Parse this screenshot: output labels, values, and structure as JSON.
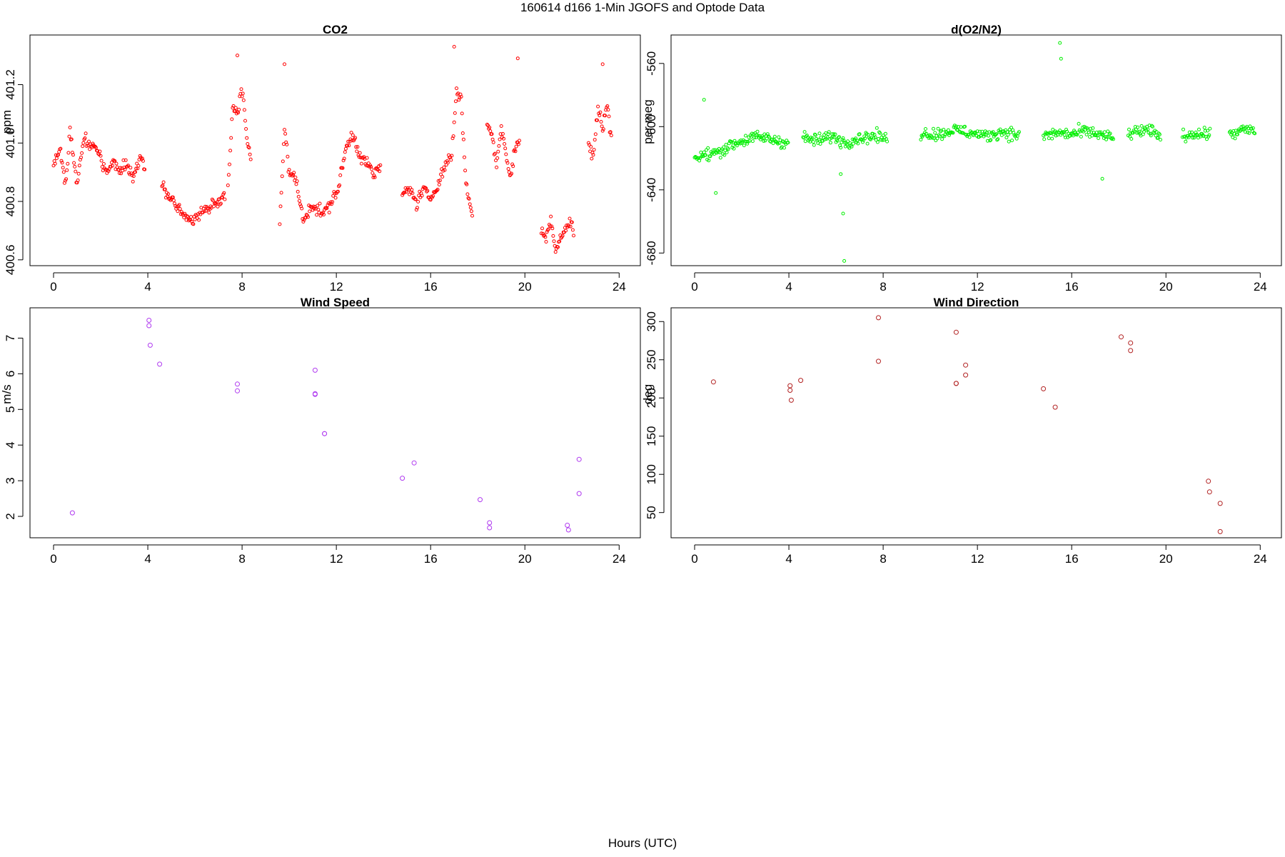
{
  "page": {
    "title": "160614   d166   1-Min  JGOFS and Optode Data",
    "xlabel": "Hours (UTC)"
  },
  "chart_data": [
    {
      "type": "scatter",
      "title": "CO2",
      "ylabel": "ppm",
      "xlabel": "",
      "xlim": [
        -1.0,
        24.9
      ],
      "ylim": [
        400.58,
        401.37
      ],
      "xticks": [
        0,
        4,
        8,
        12,
        16,
        20,
        24
      ],
      "yticks": [
        400.6,
        400.8,
        401.0,
        401.2
      ],
      "ytick_labels": [
        "400.6",
        "400.8",
        "401.0",
        "401.2"
      ],
      "color": "#ff0000",
      "grid": false,
      "series": [
        {
          "density": "one reading per minute",
          "segments": [
            {
              "x": [
                0.0,
                0.3,
                0.5,
                0.7,
                1.0,
                1.3,
                1.6,
                1.9,
                2.2,
                2.5,
                2.8,
                3.1,
                3.4,
                3.7,
                3.9
              ],
              "y": [
                400.93,
                400.98,
                400.85,
                401.04,
                400.86,
                401.02,
                400.99,
                400.97,
                400.9,
                400.93,
                400.91,
                400.92,
                400.88,
                400.96,
                400.9
              ]
            },
            {
              "x": [
                4.6,
                4.9,
                5.2,
                5.5,
                5.8,
                6.1,
                6.4,
                6.7,
                7.0,
                7.3
              ],
              "y": [
                400.87,
                400.81,
                400.79,
                400.76,
                400.74,
                400.75,
                400.77,
                400.79,
                400.8,
                400.81
              ]
            },
            {
              "x": [
                7.4,
                7.6,
                7.8,
                8.0,
                8.2,
                8.4
              ],
              "y": [
                400.85,
                401.12,
                401.1,
                401.18,
                401.02,
                400.94
              ]
            },
            {
              "x": [
                9.6,
                9.8,
                10.0,
                10.3,
                10.6,
                10.9,
                11.2,
                11.5,
                11.8,
                12.1,
                12.4,
                12.7,
                13.0,
                13.3,
                13.6,
                13.9
              ],
              "y": [
                400.72,
                401.06,
                400.9,
                400.87,
                400.73,
                400.79,
                400.77,
                400.76,
                400.8,
                400.85,
                400.98,
                401.03,
                400.96,
                400.93,
                400.89,
                400.92
              ]
            },
            {
              "x": [
                14.8,
                15.1,
                15.4,
                15.7,
                16.0,
                16.3,
                16.6,
                16.9,
                17.1,
                17.3,
                17.5,
                17.8
              ],
              "y": [
                400.82,
                400.85,
                400.79,
                400.84,
                400.81,
                400.86,
                400.92,
                400.96,
                401.18,
                401.15,
                400.86,
                400.74
              ]
            },
            {
              "x": [
                18.4,
                18.6,
                18.8,
                19.0,
                19.4,
                19.6,
                19.8
              ],
              "y": [
                401.08,
                401.02,
                400.93,
                401.05,
                400.88,
                400.99,
                401.01
              ]
            },
            {
              "x": [
                20.7,
                20.9,
                21.1,
                21.3,
                21.5,
                21.7,
                21.9,
                22.1
              ],
              "y": [
                400.7,
                400.67,
                400.75,
                400.63,
                400.68,
                400.7,
                400.73,
                400.69
              ]
            },
            {
              "x": [
                22.7,
                22.9,
                23.1,
                23.3,
                23.5,
                23.7
              ],
              "y": [
                401.0,
                400.95,
                401.12,
                401.05,
                401.14,
                400.99
              ]
            }
          ],
          "outliers": {
            "x": [
              7.8,
              9.8,
              17.0,
              19.7,
              23.3
            ],
            "y": [
              401.3,
              401.27,
              401.33,
              401.29,
              401.27
            ]
          }
        }
      ]
    },
    {
      "type": "scatter",
      "title": "d(O2/N2)",
      "ylabel": "per meg",
      "xlabel": "",
      "xlim": [
        -1.0,
        24.9
      ],
      "ylim": [
        -688,
        -542
      ],
      "xticks": [
        0,
        4,
        8,
        12,
        16,
        20,
        24
      ],
      "yticks": [
        -680,
        -640,
        -600,
        -560
      ],
      "ytick_labels": [
        "-680",
        "-640",
        "-600",
        "-560"
      ],
      "color": "#00ee00",
      "grid": false,
      "series": [
        {
          "density": "one reading per minute",
          "segments": [
            {
              "x": [
                0.0,
                0.5,
                1.0,
                1.5,
                2.0,
                2.5,
                3.0,
                3.5,
                4.0
              ],
              "y": [
                -620,
                -618,
                -616,
                -612,
                -609,
                -607,
                -607,
                -609,
                -610
              ]
            },
            {
              "x": [
                4.6,
                5.2,
                5.8,
                6.4,
                7.0,
                7.6,
                8.2
              ],
              "y": [
                -607,
                -609,
                -606,
                -610,
                -607,
                -606,
                -608
              ]
            },
            {
              "x": [
                9.6,
                10.3,
                11.0,
                11.7,
                12.4,
                13.1,
                13.8
              ],
              "y": [
                -604,
                -605,
                -602,
                -604,
                -606,
                -603,
                -606
              ]
            },
            {
              "x": [
                14.8,
                15.4,
                16.0,
                16.6,
                17.2,
                17.8
              ],
              "y": [
                -606,
                -604,
                -605,
                -603,
                -605,
                -608
              ]
            },
            {
              "x": [
                18.4,
                18.8,
                19.4,
                19.8
              ],
              "y": [
                -605,
                -603,
                -603,
                -606
              ]
            },
            {
              "x": [
                20.7,
                21.1,
                21.5,
                21.9
              ],
              "y": [
                -607,
                -604,
                -605,
                -604
              ]
            },
            {
              "x": [
                22.7,
                23.1,
                23.5,
                23.8
              ],
              "y": [
                -605,
                -603,
                -602,
                -603
              ]
            }
          ],
          "outliers": {
            "x": [
              0.4,
              0.9,
              6.2,
              6.3,
              6.35,
              15.5,
              15.55,
              17.3
            ],
            "y": [
              -583,
              -642,
              -630,
              -655,
              -685,
              -547,
              -557,
              -633
            ]
          }
        }
      ]
    },
    {
      "type": "scatter",
      "title": "Wind Speed",
      "ylabel": "m/s",
      "xlabel": "",
      "xlim": [
        -1.0,
        24.9
      ],
      "ylim": [
        1.4,
        7.85
      ],
      "xticks": [
        0,
        4,
        8,
        12,
        16,
        20,
        24
      ],
      "yticks": [
        2,
        3,
        4,
        5,
        6,
        7
      ],
      "ytick_labels": [
        "2",
        "3",
        "4",
        "5",
        "6",
        "7"
      ],
      "color": "#b03af0",
      "grid": false,
      "series": [
        {
          "x": [
            0.8,
            4.05,
            4.05,
            4.1,
            4.5,
            7.8,
            7.8,
            11.1,
            11.1,
            11.1,
            11.5,
            11.5,
            14.8,
            15.3,
            18.1,
            18.5,
            18.5,
            21.8,
            21.85,
            22.3,
            22.3
          ],
          "y": [
            2.1,
            7.5,
            7.35,
            6.8,
            6.27,
            5.71,
            5.52,
            6.1,
            5.44,
            5.42,
            4.32,
            4.32,
            3.07,
            3.5,
            2.47,
            1.82,
            1.68,
            1.75,
            1.62,
            3.6,
            2.64
          ]
        }
      ]
    },
    {
      "type": "scatter",
      "title": "Wind Direction",
      "ylabel": "deg",
      "xlabel": "",
      "xlim": [
        -1.0,
        24.9
      ],
      "ylim": [
        17,
        318
      ],
      "xticks": [
        0,
        4,
        8,
        12,
        16,
        20,
        24
      ],
      "yticks": [
        50,
        100,
        150,
        200,
        250,
        300
      ],
      "ytick_labels": [
        "50",
        "100",
        "150",
        "200",
        "250",
        "300"
      ],
      "color": "#b22222",
      "grid": false,
      "series": [
        {
          "x": [
            0.8,
            4.05,
            4.05,
            4.1,
            4.5,
            7.8,
            7.8,
            11.1,
            11.1,
            11.1,
            11.5,
            11.5,
            14.8,
            15.3,
            18.1,
            18.5,
            18.5,
            21.8,
            21.85,
            22.3,
            22.3
          ],
          "y": [
            221,
            216,
            210,
            197,
            223,
            305,
            248,
            286,
            219,
            219,
            243,
            230,
            212,
            188,
            280,
            272,
            262,
            91,
            77,
            62,
            25
          ]
        }
      ]
    }
  ]
}
